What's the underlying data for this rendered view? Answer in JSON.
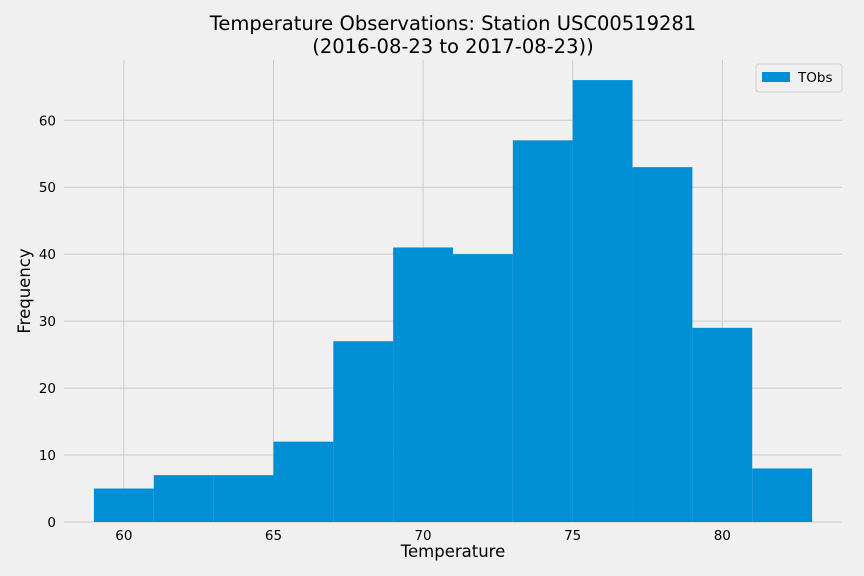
{
  "chart_data": {
    "type": "bar",
    "title_line1": "Temperature Observations: Station USC00519281",
    "title_line2": "(2016-08-23 to 2017-08-23))",
    "xlabel": "Temperature",
    "ylabel": "Frequency",
    "xlim": [
      58.0,
      84.0
    ],
    "ylim": [
      0,
      69
    ],
    "xticks": [
      "60",
      "65",
      "70",
      "75",
      "80"
    ],
    "xtick_values": [
      60,
      65,
      70,
      75,
      80
    ],
    "yticks": [
      "0",
      "10",
      "20",
      "30",
      "40",
      "50",
      "60"
    ],
    "ytick_values": [
      0,
      10,
      20,
      30,
      40,
      50,
      60
    ],
    "grid": true,
    "legend_position": "top-right",
    "bin_edges": [
      59,
      61,
      63,
      65,
      67,
      69,
      71,
      73,
      75,
      77,
      79,
      81,
      83
    ],
    "series": [
      {
        "name": "TObs",
        "color": "#008fd5",
        "values": [
          5,
          7,
          7,
          12,
          27,
          41,
          40,
          57,
          66,
          53,
          29,
          8
        ]
      }
    ]
  }
}
